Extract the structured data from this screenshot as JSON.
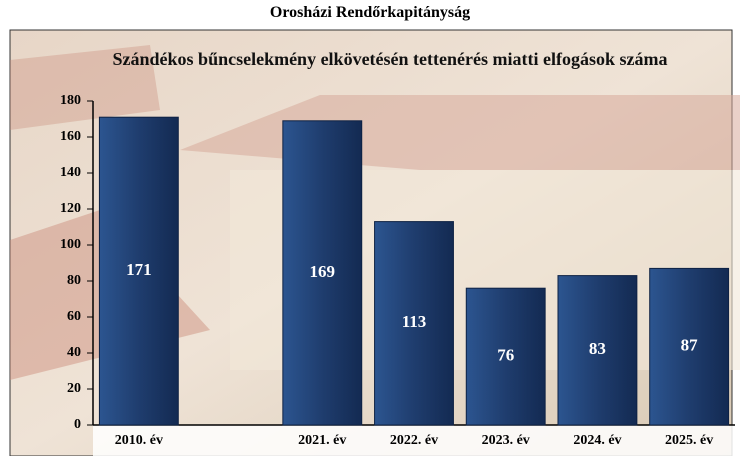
{
  "header": {
    "title": "Orosházi Rendőrkapitányság"
  },
  "chart_data": {
    "type": "bar",
    "title": "Szándékos bűncselekmény elkövetésén tettenérés miatti elfogások száma",
    "categories": [
      "2010. év",
      null,
      "2021. év",
      "2022. év",
      "2023. év",
      "2024. év",
      "2025. év"
    ],
    "values": [
      171,
      null,
      169,
      113,
      76,
      83,
      87
    ],
    "color": "#1f3d6e",
    "ylim": [
      0,
      180
    ],
    "yticks": [
      0,
      20,
      40,
      60,
      80,
      100,
      120,
      140,
      160,
      180
    ],
    "grid": false
  }
}
